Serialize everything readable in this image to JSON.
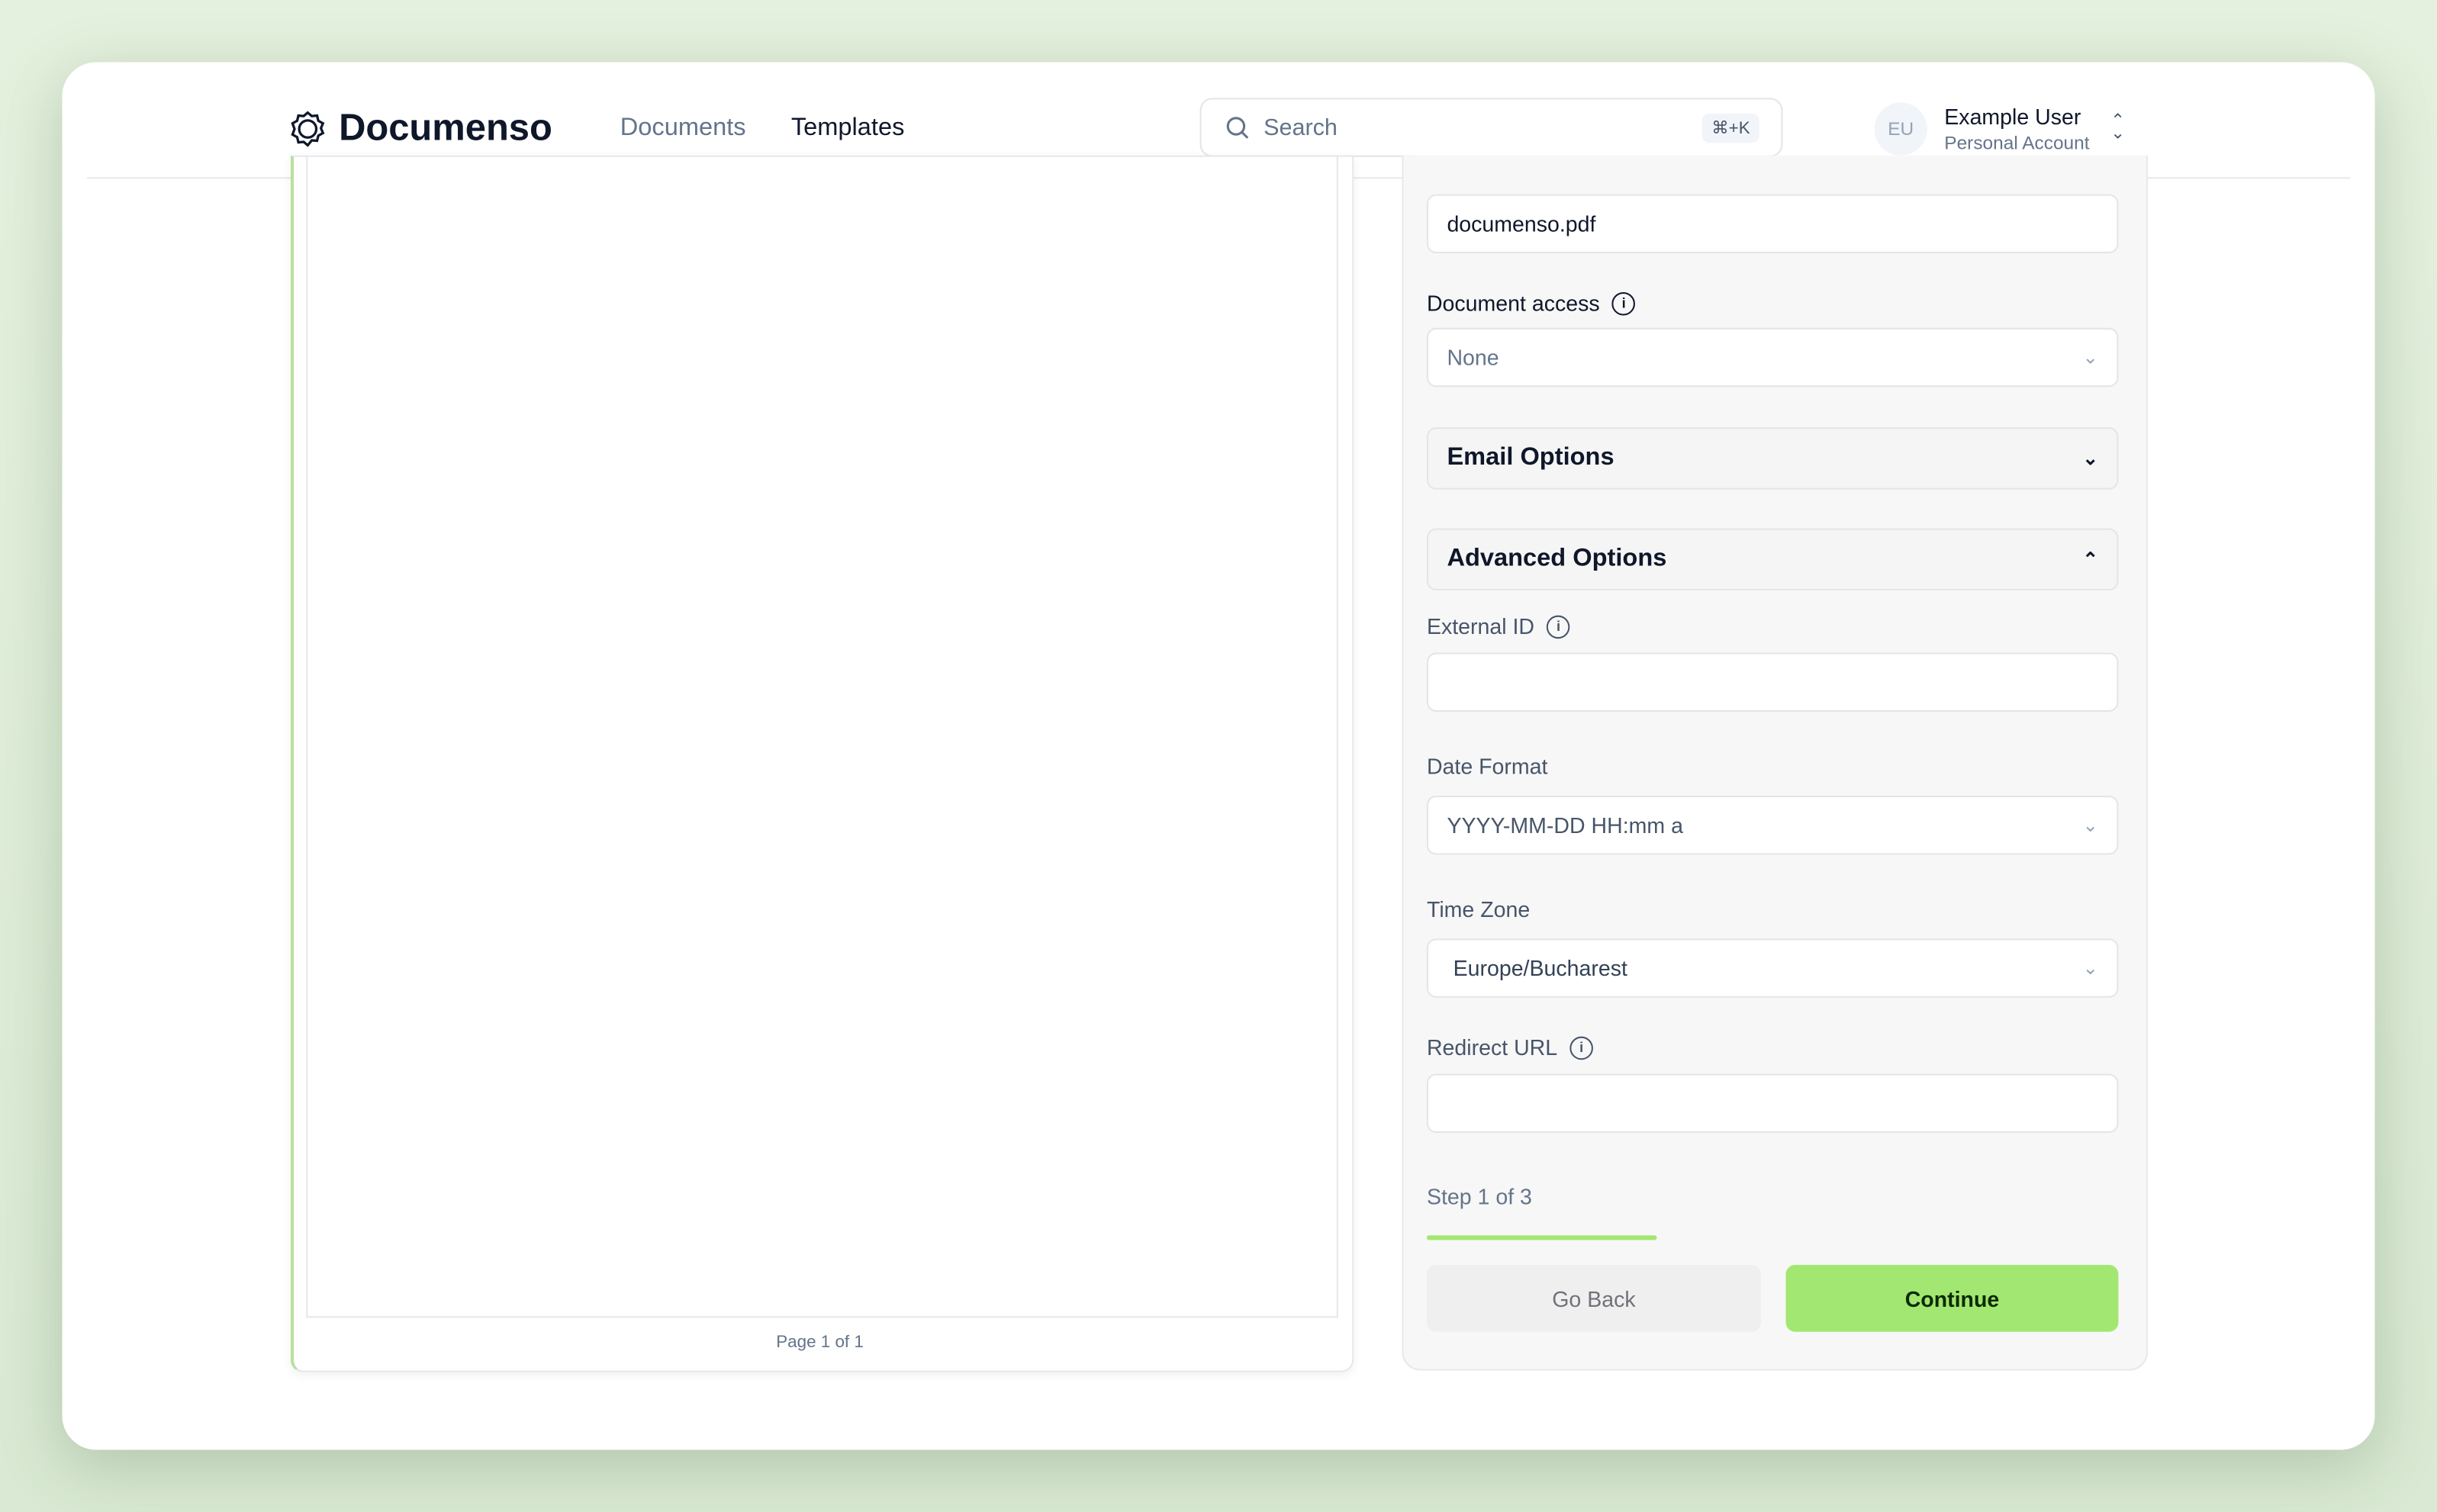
{
  "header": {
    "brand": "Documenso",
    "nav": [
      {
        "label": "Documents"
      },
      {
        "label": "Templates"
      }
    ],
    "search": {
      "placeholder": "Search",
      "shortcut": "⌘+K"
    },
    "user": {
      "initials": "EU",
      "name": "Example User",
      "account": "Personal Account"
    }
  },
  "preview": {
    "page_label": "Page 1 of 1"
  },
  "form": {
    "title_value": "documenso.pdf",
    "document_access": {
      "label": "Document access",
      "value": "None"
    },
    "email_options": "Email Options",
    "advanced_options": "Advanced Options",
    "external_id": {
      "label": "External ID",
      "value": ""
    },
    "date_format": {
      "label": "Date Format",
      "value": "YYYY-MM-DD HH:mm a"
    },
    "time_zone": {
      "label": "Time Zone",
      "value": "Europe/Bucharest"
    },
    "redirect_url": {
      "label": "Redirect URL",
      "value": ""
    },
    "step": {
      "label": "Step 1 of 3",
      "current": 1,
      "total": 3
    },
    "go_back": "Go Back",
    "continue": "Continue"
  },
  "colors": {
    "accent": "#a2e771",
    "background": "#e4f1de"
  }
}
